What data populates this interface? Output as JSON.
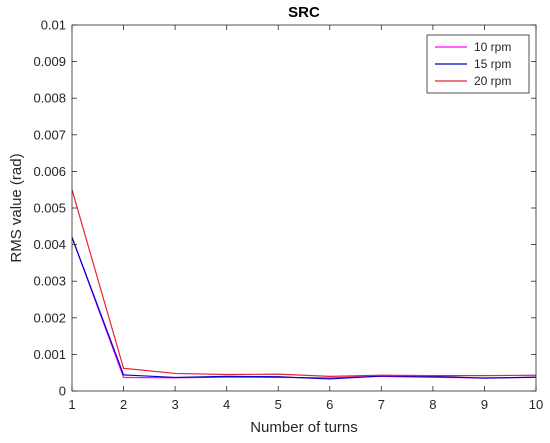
{
  "chart_data": {
    "type": "line",
    "title": "SRC",
    "xlabel": "Number of turns",
    "ylabel": "RMS value (rad)",
    "xlim": [
      1,
      10
    ],
    "ylim": [
      0,
      0.01
    ],
    "x_ticks": [
      1,
      2,
      3,
      4,
      5,
      6,
      7,
      8,
      9,
      10
    ],
    "y_ticks": [
      0,
      0.001,
      0.002,
      0.003,
      0.004,
      0.005,
      0.006,
      0.007,
      0.008,
      0.009,
      0.01
    ],
    "y_tick_labels": [
      "0",
      "0.001",
      "0.002",
      "0.003",
      "0.004",
      "0.005",
      "0.006",
      "0.007",
      "0.008",
      "0.009",
      "0.01"
    ],
    "grid": false,
    "legend_position": "top-right",
    "x": [
      1,
      2,
      3,
      4,
      5,
      6,
      7,
      8,
      9,
      10
    ],
    "series": [
      {
        "name": "10 rpm",
        "color": "#ff00ff",
        "values": [
          0.0042,
          0.00037,
          0.00036,
          0.00038,
          0.00037,
          0.00036,
          0.0004,
          0.00037,
          0.00036,
          0.00037
        ]
      },
      {
        "name": "15 rpm",
        "color": "#0000cc",
        "values": [
          0.0042,
          0.00044,
          0.00037,
          0.0004,
          0.00039,
          0.00033,
          0.00041,
          0.0004,
          0.00035,
          0.00038
        ]
      },
      {
        "name": "20 rpm",
        "color": "#e8262e",
        "values": [
          0.0055,
          0.00062,
          0.00048,
          0.00045,
          0.00046,
          0.0004,
          0.00043,
          0.00042,
          0.00042,
          0.00043
        ]
      }
    ]
  }
}
